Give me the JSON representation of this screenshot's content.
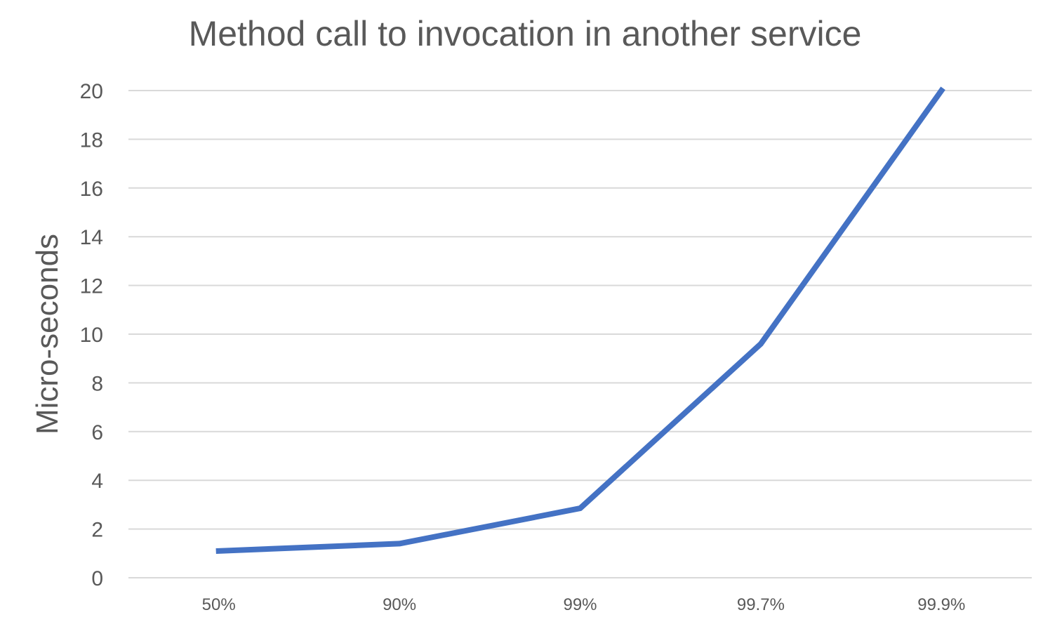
{
  "chart_data": {
    "type": "line",
    "title": "Method call to invocation in another service",
    "xlabel": "",
    "ylabel": "Micro-seconds",
    "categories": [
      "50%",
      "90%",
      "99%",
      "99.7%",
      "99.9%"
    ],
    "series": [
      {
        "values": [
          1.1,
          1.4,
          2.85,
          9.6,
          20.0
        ]
      }
    ],
    "ylim": [
      0,
      20
    ],
    "yticks": [
      0,
      2,
      4,
      6,
      8,
      10,
      12,
      14,
      16,
      18,
      20
    ],
    "grid": true,
    "legend": "none",
    "colors": {
      "line": "#4472C4",
      "grid": "#D9D9D9",
      "text": "#595959"
    }
  }
}
